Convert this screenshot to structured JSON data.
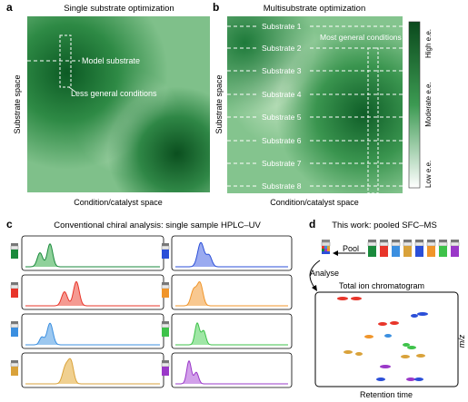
{
  "panels": {
    "a": {
      "letter": "a",
      "title": "Single substrate optimization",
      "ylabel": "Substrate space",
      "xlabel": "Condition/catalyst space",
      "model_substrate": "Model substrate",
      "less_general": "Less general conditions"
    },
    "b": {
      "letter": "b",
      "title": "Multisubstrate optimization",
      "ylabel": "Substrate space",
      "xlabel": "Condition/catalyst space",
      "most_general": "Most general conditions",
      "substrates": [
        "Substrate 1",
        "Substrate 2",
        "Substrate 3",
        "Substrate 4",
        "Substrate 5",
        "Substrate 6",
        "Substrate 7",
        "Substrate 8"
      ],
      "colorbar": {
        "high": "High e.e.",
        "moderate": "Moderate e.e.",
        "low": "Low e.e."
      }
    },
    "c": {
      "letter": "c",
      "title": "Conventional chiral analysis: single sample HPLC–UV",
      "vials": [
        {
          "color": "#1a8a3c",
          "fill": "#8fd19a"
        },
        {
          "color": "#e8352a",
          "fill": "#f59a92"
        },
        {
          "color": "#3b8fe0",
          "fill": "#9cc8f0"
        },
        {
          "color": "#d9a23a",
          "fill": "#f0d090"
        },
        {
          "color": "#2b4fd8",
          "fill": "#9aaaf0"
        },
        {
          "color": "#f0952a",
          "fill": "#f8c890"
        },
        {
          "color": "#3ec24a",
          "fill": "#a0e6a6"
        },
        {
          "color": "#9a38c8",
          "fill": "#d2a0ea"
        }
      ]
    },
    "d": {
      "letter": "d",
      "title": "This work: pooled SFC–MS",
      "pool": "Pool",
      "analyse": "Analyse",
      "tic_title": "Total ion chromatogram",
      "ylabel": "m/z",
      "xlabel": "Retention time",
      "vial_colors": [
        "#1a8a3c",
        "#e8352a",
        "#3b8fe0",
        "#d9a23a",
        "#2b4fd8",
        "#f0952a",
        "#3ec24a",
        "#9a38c8"
      ]
    }
  }
}
